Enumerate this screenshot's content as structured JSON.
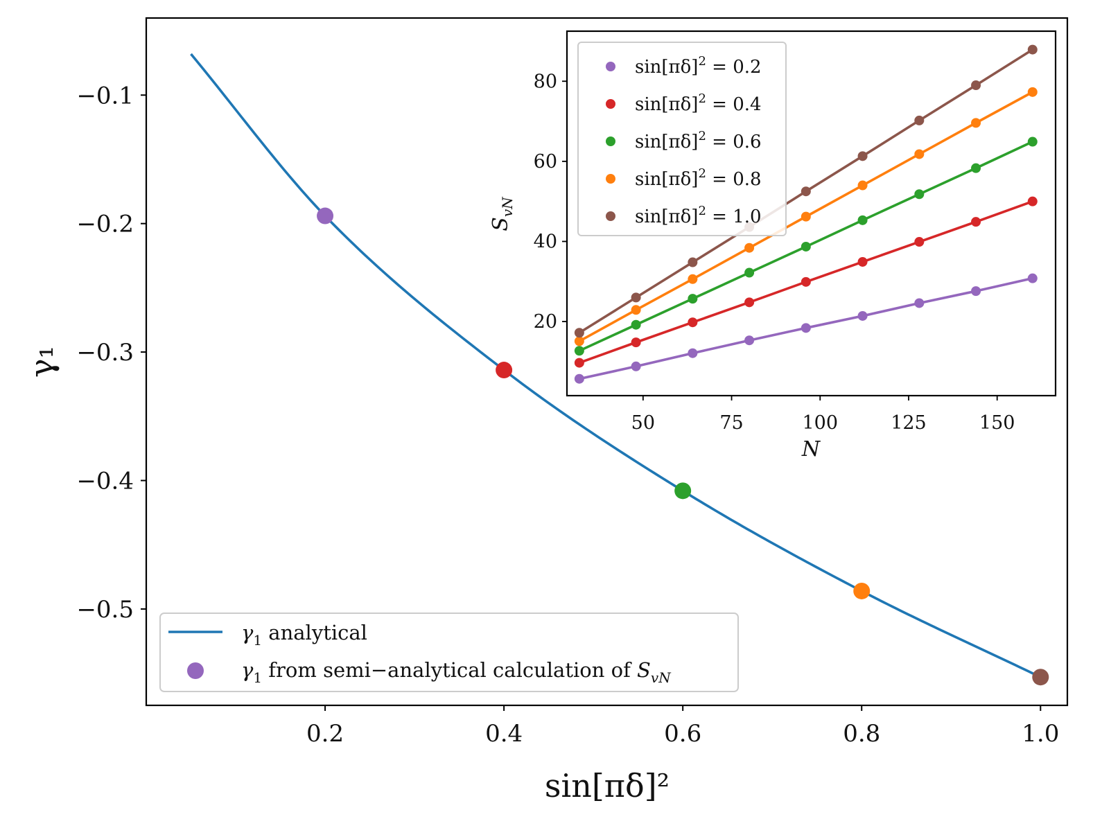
{
  "colors": {
    "analytical_line": "#1f77b4",
    "purple": "#9467bd",
    "red": "#d62728",
    "green": "#2ca02c",
    "orange": "#ff7f0e",
    "brown": "#8c564b"
  },
  "chart_data": [
    {
      "id": "main",
      "type": "line",
      "title": "",
      "xlabel": "sin[πδ]²",
      "ylabel": "γ₁",
      "xlim": [
        0.0,
        1.03
      ],
      "ylim": [
        -0.575,
        -0.04
      ],
      "xticks": [
        0.2,
        0.4,
        0.6,
        0.8,
        1.0
      ],
      "xtick_labels": [
        "0.2",
        "0.4",
        "0.6",
        "0.8",
        "1.0"
      ],
      "yticks": [
        -0.1,
        -0.2,
        -0.3,
        -0.4,
        -0.5
      ],
      "ytick_labels": [
        "−0.1",
        "−0.2",
        "−0.3",
        "−0.4",
        "−0.5"
      ],
      "analytical_curve": {
        "name": "γ₁ analytical",
        "color_key": "analytical_line",
        "x_range": [
          0.05,
          1.0
        ],
        "anchor_x": [
          0.05,
          0.2,
          0.4,
          0.6,
          0.8,
          1.0
        ],
        "anchor_y": [
          -0.068,
          -0.194,
          -0.314,
          -0.408,
          -0.486,
          -0.553
        ]
      },
      "semi_analytical_points": {
        "name": "γ₁ from semi−analytical calculation of S_vN",
        "x": [
          0.2,
          0.4,
          0.6,
          0.8,
          1.0
        ],
        "y": [
          -0.194,
          -0.314,
          -0.408,
          -0.486,
          -0.553
        ],
        "color_keys": [
          "purple",
          "red",
          "green",
          "orange",
          "brown"
        ]
      },
      "legend": {
        "position": "lower-left",
        "entries": [
          {
            "marker": "line",
            "sym": "γ",
            "sub": "1",
            "rest": " analytical"
          },
          {
            "marker": "dot",
            "sym": "γ",
            "sub": "1",
            "rest": " from semi−analytical calculation of ",
            "tail": "S",
            "tail_sub": "vN"
          }
        ]
      }
    },
    {
      "id": "inset",
      "type": "line",
      "title": "",
      "xlabel": "N",
      "ylabel": "S",
      "ylabel_sub": "vN",
      "xlim": [
        28.5,
        166.5
      ],
      "ylim": [
        1.5,
        92.5
      ],
      "xticks": [
        50,
        75,
        100,
        125,
        150
      ],
      "xtick_labels": [
        "50",
        "75",
        "100",
        "125",
        "150"
      ],
      "yticks": [
        20,
        40,
        60,
        80
      ],
      "ytick_labels": [
        "20",
        "40",
        "60",
        "80"
      ],
      "x": [
        32,
        48,
        64,
        80,
        96,
        112,
        128,
        144,
        160
      ],
      "series": [
        {
          "name": "sin[πδ]² = 0.2",
          "color_key": "purple",
          "values": [
            5.7,
            8.8,
            12.1,
            15.3,
            18.4,
            21.4,
            24.6,
            27.6,
            30.8
          ]
        },
        {
          "name": "sin[πδ]² = 0.4",
          "color_key": "red",
          "values": [
            9.7,
            14.8,
            19.8,
            24.8,
            29.9,
            34.9,
            39.9,
            44.9,
            50.0
          ]
        },
        {
          "name": "sin[πδ]² = 0.6",
          "color_key": "green",
          "values": [
            12.7,
            19.2,
            25.7,
            32.2,
            38.7,
            45.3,
            51.8,
            58.3,
            64.9
          ]
        },
        {
          "name": "sin[πδ]² = 0.8",
          "color_key": "orange",
          "values": [
            15.1,
            22.9,
            30.6,
            38.4,
            46.2,
            54.0,
            61.8,
            69.6,
            77.3
          ]
        },
        {
          "name": "sin[πδ]² = 1.0",
          "color_key": "brown",
          "values": [
            17.2,
            26.0,
            34.8,
            43.6,
            52.5,
            61.3,
            70.2,
            79.0,
            87.9
          ]
        }
      ],
      "legend": {
        "position": "upper-left",
        "entries": [
          {
            "prefix": "sin[πδ]",
            "sup": "2",
            "suffix": " = 0.2"
          },
          {
            "prefix": "sin[πδ]",
            "sup": "2",
            "suffix": " = 0.4"
          },
          {
            "prefix": "sin[πδ]",
            "sup": "2",
            "suffix": " = 0.6"
          },
          {
            "prefix": "sin[πδ]",
            "sup": "2",
            "suffix": " = 0.8"
          },
          {
            "prefix": "sin[πδ]",
            "sup": "2",
            "suffix": " = 1.0"
          }
        ]
      }
    }
  ]
}
